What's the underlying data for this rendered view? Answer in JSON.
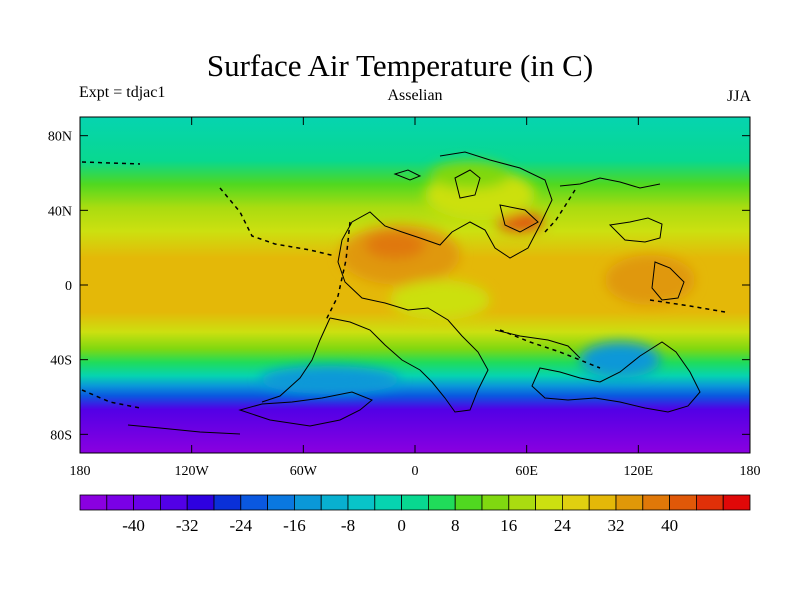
{
  "header": {
    "title": "Surface Air Temperature (in C)",
    "left_label": "Expt = tdjac1",
    "center_label": "Asselian",
    "right_label": "JJA"
  },
  "map": {
    "x_ticks": [
      {
        "value": -180,
        "label": "180"
      },
      {
        "value": -120,
        "label": "120W"
      },
      {
        "value": -60,
        "label": "60W"
      },
      {
        "value": 0,
        "label": "0"
      },
      {
        "value": 60,
        "label": "60E"
      },
      {
        "value": 120,
        "label": "120E"
      },
      {
        "value": 180,
        "label": "180"
      }
    ],
    "y_ticks": [
      {
        "value": 80,
        "label": "80N"
      },
      {
        "value": 40,
        "label": "40N"
      },
      {
        "value": 0,
        "label": "0"
      },
      {
        "value": -40,
        "label": "40S"
      },
      {
        "value": -80,
        "label": "80S"
      }
    ],
    "lon_range": [
      -180,
      180
    ],
    "lat_range": [
      -90,
      90
    ],
    "field_description": "Zonal temperature bands: ~24-32C tropics, cooling to 0-8C at 80N and below -40C over southern polar region; warm anomalies over continental interior near 20N,20W and 30N,55E"
  },
  "colorbar": {
    "colors": [
      "#8a00e0",
      "#7a00e6",
      "#6a00e8",
      "#5200e6",
      "#2e00e0",
      "#0a30d8",
      "#0a58e0",
      "#0a78e0",
      "#0a98d8",
      "#08b0d0",
      "#08c4c8",
      "#06d4b0",
      "#08d890",
      "#20dc5a",
      "#50d820",
      "#80d810",
      "#aadc10",
      "#cce010",
      "#e0d010",
      "#e4b808",
      "#e09808",
      "#e07808",
      "#e05808",
      "#e03008",
      "#e00808"
    ],
    "labels": [
      {
        "index": 2,
        "label": "-40"
      },
      {
        "index": 4,
        "label": "-32"
      },
      {
        "index": 6,
        "label": "-24"
      },
      {
        "index": 8,
        "label": "-16"
      },
      {
        "index": 10,
        "label": "-8"
      },
      {
        "index": 12,
        "label": "0"
      },
      {
        "index": 14,
        "label": "8"
      },
      {
        "index": 16,
        "label": "16"
      },
      {
        "index": 18,
        "label": "24"
      },
      {
        "index": 20,
        "label": "32"
      },
      {
        "index": 22,
        "label": "40"
      }
    ]
  }
}
